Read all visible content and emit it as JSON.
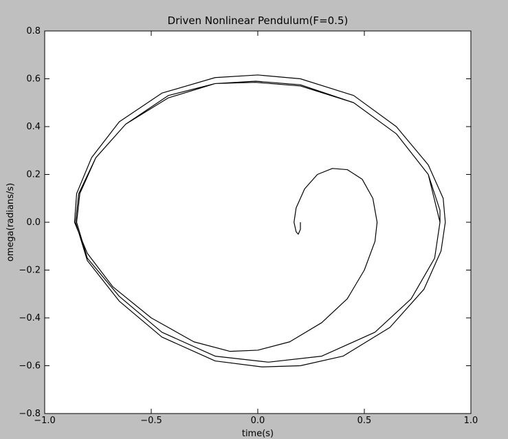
{
  "chart_data": {
    "type": "line",
    "title": "Driven Nonlinear Pendulum(F=0.5)",
    "xlabel": "time(s)",
    "ylabel": "omega(radians/s)",
    "xlim": [
      -1,
      1
    ],
    "ylim": [
      -0.8,
      0.8
    ],
    "xticks": [
      {
        "value": -1,
        "label": "−1.0"
      },
      {
        "value": -0.5,
        "label": "−0.5"
      },
      {
        "value": 0,
        "label": "0.0"
      },
      0.5,
      {
        "value": 1,
        "label": "1.0"
      }
    ],
    "yticks": [
      {
        "value": -0.8,
        "label": "−0.8"
      },
      {
        "value": -0.6,
        "label": "−0.6"
      },
      {
        "value": -0.4,
        "label": "−0.4"
      },
      {
        "value": -0.2,
        "label": "−0.2"
      },
      {
        "value": 0,
        "label": "0.0"
      },
      0.2,
      0.4,
      0.6,
      0.8
    ],
    "series": [
      {
        "color": "#000000",
        "x": [
          0.2,
          0.2,
          0.19,
          0.18,
          0.17,
          0.18,
          0.22,
          0.28,
          0.35,
          0.42,
          0.49,
          0.54,
          0.56,
          0.55,
          0.5,
          0.42,
          0.3,
          0.15,
          0.0,
          -0.13,
          -0.3,
          -0.5,
          -0.68,
          -0.8,
          -0.86,
          -0.85,
          -0.78,
          -0.65,
          -0.45,
          -0.2,
          0.0,
          0.2,
          0.45,
          0.65,
          0.8,
          0.87,
          0.88,
          0.86,
          0.78,
          0.62,
          0.4,
          0.2,
          0.02,
          -0.2,
          -0.45,
          -0.65,
          -0.8,
          -0.855,
          -0.84,
          -0.76,
          -0.62,
          -0.42,
          -0.2,
          -0.01,
          0.2,
          0.45,
          0.65,
          0.8,
          0.855,
          0.855,
          0.83,
          0.72,
          0.55,
          0.3,
          0.05,
          -0.2,
          -0.45,
          -0.65,
          -0.8,
          -0.85,
          -0.835,
          -0.76,
          -0.62,
          -0.42,
          -0.2,
          -0.01,
          0.2,
          0.45,
          0.65,
          0.8,
          0.855
        ],
        "values": [
          0,
          -0.03,
          -0.05,
          -0.04,
          0.0,
          0.06,
          0.14,
          0.2,
          0.225,
          0.22,
          0.18,
          0.1,
          0.0,
          -0.08,
          -0.2,
          -0.32,
          -0.42,
          -0.5,
          -0.535,
          -0.54,
          -0.5,
          -0.4,
          -0.27,
          -0.13,
          0.0,
          0.12,
          0.27,
          0.42,
          0.54,
          0.605,
          0.616,
          0.6,
          0.53,
          0.4,
          0.24,
          0.1,
          0.0,
          -0.12,
          -0.28,
          -0.44,
          -0.56,
          -0.6,
          -0.605,
          -0.58,
          -0.48,
          -0.33,
          -0.16,
          0.0,
          0.12,
          0.27,
          0.41,
          0.53,
          0.58,
          0.59,
          0.575,
          0.5,
          0.37,
          0.2,
          0.05,
          0.0,
          -0.15,
          -0.32,
          -0.46,
          -0.56,
          -0.585,
          -0.56,
          -0.46,
          -0.31,
          -0.15,
          0.0,
          0.12,
          0.27,
          0.41,
          0.52,
          0.58,
          0.585,
          0.57,
          0.5,
          0.37,
          0.2,
          0.0
        ]
      }
    ]
  }
}
